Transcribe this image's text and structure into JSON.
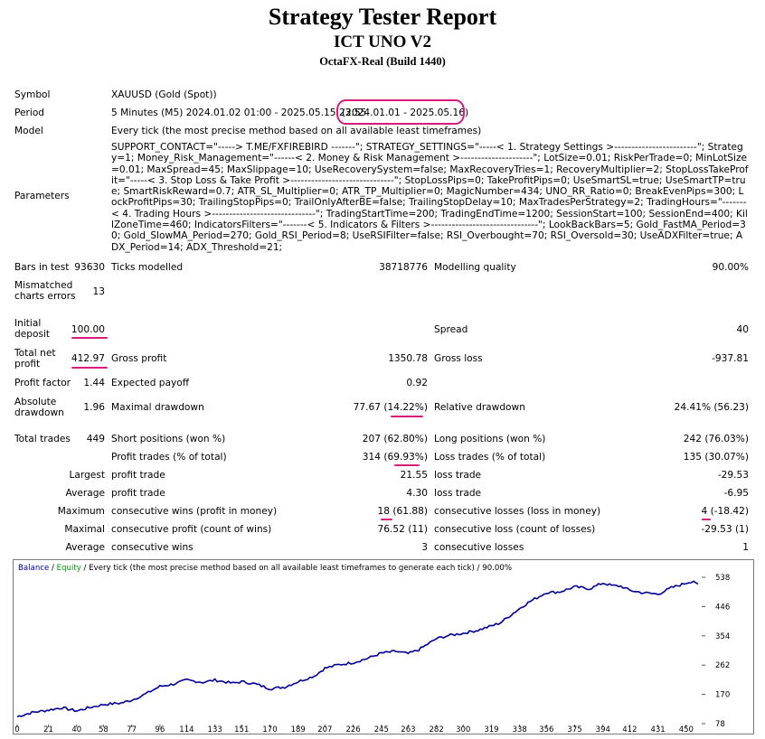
{
  "header": {
    "title": "Strategy Tester Report",
    "ea": "ICT UNO V2",
    "server": "OctaFX-Real (Build 1440)"
  },
  "info": {
    "symbol_label": "Symbol",
    "symbol": "XAUUSD (Gold (Spot))",
    "period_label": "Period",
    "period": "5 Minutes (M5) 2024.01.02 01:00 - 2025.05.15 23:55",
    "period_range": "(2024.01.01 - 2025.05.16)",
    "model_label": "Model",
    "model": "Every tick (the most precise method based on all available least timeframes)",
    "parameters_label": "Parameters",
    "parameters": "SUPPORT_CONTACT=\"-----> T.ME/FXFIREBIRD -------\"; STRATEGY_SETTINGS=\"-----< 1. Strategy Settings >------------------------\"; Strategy=1; Money_Risk_Management=\"------< 2. Money & Risk Management >---------------------\"; LotSize=0.01; RiskPerTrade=0; MinLotSize=0.01; MaxSpread=45; MaxSlippage=10; UseRecoverySystem=false; MaxRecoveryTries=1; RecoveryMultiplier=2; StopLossTakeProfit=\"-----< 3. Stop Loss & Take Profit >------------------------------\"; StopLossPips=0; TakeProfitPips=0; UseSmartSL=true; UseSmartTP=true; SmartRiskReward=0.7; ATR_SL_Multiplier=0; ATR_TP_Multiplier=0; MagicNumber=434; UNO_RR_Ratio=0; BreakEvenPips=300; LockProfitPips=30; TrailingStopPips=0; TrailOnlyAfterBE=false; TrailingStopDelay=10; MaxTradesPerStrategy=2; TradingHours=\"-------< 4. Trading Hours >------------------------------\"; TradingStartTime=200; TradingEndTime=1200; SessionStart=100; SessionEnd=400; KillZoneTime=460; IndicatorsFilters=\"-------< 5. Indicators & Filters >-------------------------------\"; LookBackBars=5; Gold_FastMA_Period=30; Gold_SlowMA_Period=270; Gold_RSI_Period=8; UseRSIFilter=false; RSI_Overbought=70; RSI_Oversold=30; UseADXFilter=true; ADX_Period=14; ADX_Threshold=21;"
  },
  "stats": {
    "bars_label": "Bars in test",
    "bars": "93630",
    "ticks_label": "Ticks modelled",
    "ticks": "38718776",
    "quality_label": "Modelling quality",
    "quality": "90.00%",
    "mismatched_label": "Mismatched charts errors",
    "mismatched": "13",
    "deposit_label": "Initial deposit",
    "deposit": "100.00",
    "spread_label": "Spread",
    "spread": "40",
    "netprofit_label": "Total net profit",
    "netprofit": "412.97",
    "grossprofit_label": "Gross profit",
    "grossprofit": "1350.78",
    "grossloss_label": "Gross loss",
    "grossloss": "-937.81",
    "pf_label": "Profit factor",
    "pf": "1.44",
    "payoff_label": "Expected payoff",
    "payoff": "0.92",
    "absdd_label": "Absolute drawdown",
    "absdd": "1.96",
    "maxdd_label": "Maximal drawdown",
    "maxdd": "77.67 (14.22%)",
    "reldd_label": "Relative drawdown",
    "reldd": "24.41% (56.23)",
    "trades_label": "Total trades",
    "trades": "449",
    "short_label": "Short positions (won %)",
    "short": "207 (62.80%)",
    "long_label": "Long positions (won %)",
    "long": "242 (76.03%)",
    "ptrades_label": "Profit trades (% of total)",
    "ptrades": "314 (69.93%)",
    "ltrades_label": "Loss trades (% of total)",
    "ltrades": "135 (30.07%)",
    "largest_label": "Largest",
    "lpt_label": "profit trade",
    "lpt": "21.55",
    "llt_label": "loss trade",
    "llt": "-29.53",
    "average_label": "Average",
    "apt_label": "profit trade",
    "apt": "4.30",
    "alt_label": "loss trade",
    "alt": "-6.95",
    "maximum_label": "Maximum",
    "mcw_label": "consecutive wins (profit in money)",
    "mcw": "18 (61.88)",
    "mcl_label": "consecutive losses (loss in money)",
    "mcl": "4 (-18.42)",
    "maximal_label": "Maximal",
    "mcp_label": "consecutive profit (count of wins)",
    "mcp": "76.52 (11)",
    "mclc_label": "consecutive loss (count of losses)",
    "mclc": "-29.53 (1)",
    "average2_label": "Average",
    "acw_label": "consecutive wins",
    "acw": "3",
    "acl_label": "consecutive losses",
    "acl": "1"
  },
  "chart_header": {
    "balance": "Balance",
    "sep": " / ",
    "equity": "Equity",
    "desc": " / Every tick (the most precise method based on all available least timeframes to generate each tick) / 90.00%"
  },
  "chart_data": {
    "type": "line",
    "series": [
      {
        "name": "Balance",
        "color": "#000099"
      },
      {
        "name": "Equity",
        "color": "#00aa00"
      }
    ],
    "x_ticks": [
      "0",
      "21",
      "40",
      "58",
      "77",
      "96",
      "114",
      "133",
      "151",
      "170",
      "189",
      "207",
      "226",
      "245",
      "263",
      "282",
      "300",
      "319",
      "338",
      "356",
      "375",
      "394",
      "412",
      "431",
      "450"
    ],
    "y_ticks": [
      "538",
      "446",
      "354",
      "262",
      "170",
      "78"
    ],
    "xlim": [
      0,
      458
    ],
    "ylim": [
      78,
      538
    ],
    "points": [
      [
        0,
        100
      ],
      [
        10,
        113
      ],
      [
        20,
        120
      ],
      [
        30,
        128
      ],
      [
        40,
        118
      ],
      [
        50,
        130
      ],
      [
        58,
        138
      ],
      [
        70,
        143
      ],
      [
        77,
        152
      ],
      [
        85,
        168
      ],
      [
        96,
        195
      ],
      [
        105,
        202
      ],
      [
        114,
        215
      ],
      [
        125,
        208
      ],
      [
        133,
        215
      ],
      [
        145,
        205
      ],
      [
        151,
        210
      ],
      [
        160,
        203
      ],
      [
        170,
        188
      ],
      [
        180,
        193
      ],
      [
        189,
        210
      ],
      [
        200,
        228
      ],
      [
        207,
        252
      ],
      [
        215,
        262
      ],
      [
        226,
        270
      ],
      [
        235,
        282
      ],
      [
        245,
        300
      ],
      [
        255,
        305
      ],
      [
        263,
        298
      ],
      [
        270,
        310
      ],
      [
        282,
        345
      ],
      [
        290,
        355
      ],
      [
        300,
        362
      ],
      [
        310,
        372
      ],
      [
        319,
        385
      ],
      [
        325,
        395
      ],
      [
        338,
        440
      ],
      [
        345,
        462
      ],
      [
        356,
        490
      ],
      [
        365,
        492
      ],
      [
        375,
        508
      ],
      [
        385,
        502
      ],
      [
        394,
        520
      ],
      [
        400,
        512
      ],
      [
        406,
        510
      ],
      [
        412,
        497
      ],
      [
        420,
        490
      ],
      [
        431,
        485
      ],
      [
        440,
        505
      ],
      [
        450,
        520
      ],
      [
        455,
        527
      ],
      [
        458,
        517
      ]
    ]
  }
}
